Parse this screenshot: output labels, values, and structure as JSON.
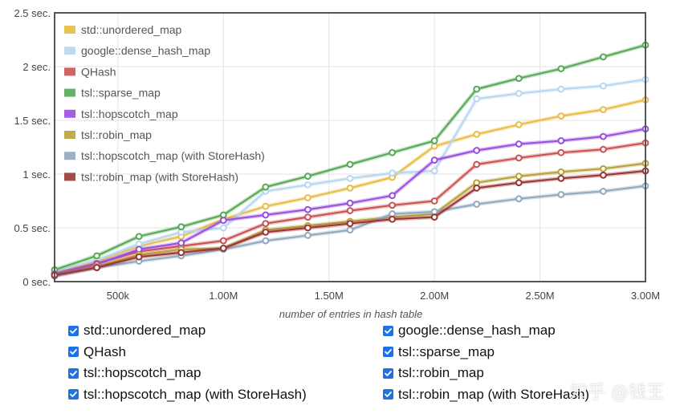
{
  "chart_data": {
    "type": "line",
    "xlabel": "number of entries in hash table",
    "ylabel": "",
    "xlim": [
      200000,
      3000000
    ],
    "ylim": [
      0,
      2.5
    ],
    "xticks": [
      {
        "value": 500000,
        "label": "500k"
      },
      {
        "value": 1000000,
        "label": "1.00M"
      },
      {
        "value": 1500000,
        "label": "1.50M"
      },
      {
        "value": 2000000,
        "label": "2.00M"
      },
      {
        "value": 2500000,
        "label": "2.50M"
      },
      {
        "value": 3000000,
        "label": "3.00M"
      }
    ],
    "yticks": [
      {
        "value": 0,
        "label": "0 sec."
      },
      {
        "value": 0.5,
        "label": "0.5 sec."
      },
      {
        "value": 1,
        "label": "1 sec."
      },
      {
        "value": 1.5,
        "label": "1.5 sec."
      },
      {
        "value": 2,
        "label": "2 sec."
      },
      {
        "value": 2.5,
        "label": "2.5 sec."
      }
    ],
    "grid": true,
    "legend_position": "top-left",
    "x": [
      200000,
      400000,
      600000,
      800000,
      1000000,
      1200000,
      1400000,
      1600000,
      1800000,
      2000000,
      2200000,
      2400000,
      2600000,
      2800000,
      3000000
    ],
    "series": [
      {
        "name": "std::unordered_map",
        "color": "#e8bc45",
        "values": [
          0.08,
          0.19,
          0.33,
          0.42,
          0.58,
          0.7,
          0.78,
          0.87,
          0.97,
          1.26,
          1.37,
          1.46,
          1.54,
          1.6,
          1.69
        ]
      },
      {
        "name": "google::dense_hash_map",
        "color": "#b7d7f1",
        "values": [
          0.09,
          0.2,
          0.35,
          0.46,
          0.5,
          0.84,
          0.9,
          0.96,
          1.01,
          1.03,
          1.7,
          1.75,
          1.79,
          1.82,
          1.88
        ]
      },
      {
        "name": "QHash",
        "color": "#cc5252",
        "values": [
          0.07,
          0.17,
          0.28,
          0.33,
          0.38,
          0.54,
          0.6,
          0.66,
          0.71,
          0.75,
          1.09,
          1.15,
          1.2,
          1.23,
          1.29
        ]
      },
      {
        "name": "tsl::sparse_map",
        "color": "#55a855",
        "values": [
          0.11,
          0.24,
          0.42,
          0.51,
          0.62,
          0.88,
          0.98,
          1.09,
          1.2,
          1.31,
          1.79,
          1.89,
          1.98,
          2.09,
          2.2
        ]
      },
      {
        "name": "tsl::hopscotch_map",
        "color": "#9a4ee0",
        "values": [
          0.07,
          0.16,
          0.3,
          0.36,
          0.57,
          0.62,
          0.67,
          0.73,
          0.8,
          1.13,
          1.22,
          1.28,
          1.31,
          1.35,
          1.42
        ]
      },
      {
        "name": "tsl::robin_map",
        "color": "#b8a03a",
        "values": [
          0.06,
          0.14,
          0.25,
          0.3,
          0.31,
          0.48,
          0.52,
          0.56,
          0.6,
          0.63,
          0.92,
          0.98,
          1.02,
          1.05,
          1.1
        ]
      },
      {
        "name": "tsl::hopscotch_map (with StoreHash)",
        "color": "#8fa9bf",
        "values": [
          0.05,
          0.13,
          0.19,
          0.24,
          0.3,
          0.38,
          0.43,
          0.48,
          0.63,
          0.65,
          0.72,
          0.77,
          0.81,
          0.84,
          0.89
        ]
      },
      {
        "name": "tsl::robin_map (with StoreHash)",
        "color": "#9b3535",
        "values": [
          0.06,
          0.13,
          0.23,
          0.27,
          0.31,
          0.46,
          0.5,
          0.54,
          0.58,
          0.6,
          0.87,
          0.92,
          0.96,
          0.99,
          1.03
        ]
      }
    ]
  },
  "toggles": [
    {
      "label": "std::unordered_map",
      "checked": true
    },
    {
      "label": "google::dense_hash_map",
      "checked": true
    },
    {
      "label": "QHash",
      "checked": true
    },
    {
      "label": "tsl::sparse_map",
      "checked": true
    },
    {
      "label": "tsl::hopscotch_map",
      "checked": true
    },
    {
      "label": "tsl::robin_map",
      "checked": true
    },
    {
      "label": "tsl::hopscotch_map (with StoreHash)",
      "checked": true
    },
    {
      "label": "tsl::robin_map (with StoreHash)",
      "checked": true
    }
  ],
  "watermark": "知乎 @钱王"
}
